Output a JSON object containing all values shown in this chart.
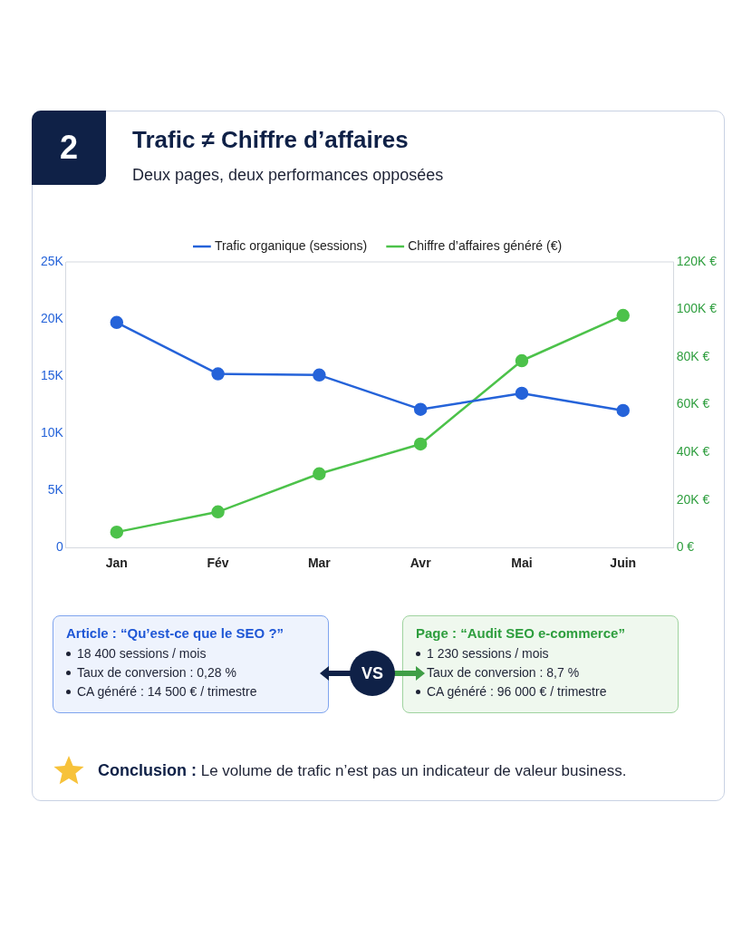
{
  "chart_data": {
    "type": "line",
    "title": "Trafic ≠ Chiffre d’affaires",
    "subtitle": "Deux pages, deux performances opposées",
    "categories": [
      "Jan",
      "Fév",
      "Mar",
      "Avr",
      "Mai",
      "Juin"
    ],
    "series": [
      {
        "name": "Trafic organique (sessions)",
        "color": "#2563d9",
        "values": [
          19700,
          15200,
          15100,
          12100,
          13500,
          12000
        ]
      },
      {
        "name": "Chiffre d’affaires généré (€)",
        "color": "#4cc24a",
        "axis": "y2",
        "values": [
          6500,
          15000,
          31000,
          43500,
          78500,
          97500
        ]
      }
    ],
    "ylim": [
      0,
      25000
    ],
    "yticks": [
      {
        "value": 0,
        "label": "0"
      },
      {
        "value": 5000,
        "label": "5K"
      },
      {
        "value": 10000,
        "label": "10K"
      },
      {
        "value": 15000,
        "label": "15K"
      },
      {
        "value": 20000,
        "label": "20K"
      },
      {
        "value": 25000,
        "label": "25K"
      }
    ],
    "y2lim": [
      0,
      120000
    ],
    "y2ticks": [
      {
        "value": 0,
        "label": "0 €"
      },
      {
        "value": 20000,
        "label": "20K €"
      },
      {
        "value": 40000,
        "label": "40K €"
      },
      {
        "value": 60000,
        "label": "60K €"
      },
      {
        "value": 80000,
        "label": "80K €"
      },
      {
        "value": 100000,
        "label": "100K €"
      },
      {
        "value": 120000,
        "label": "120K €"
      }
    ],
    "grid": false,
    "legend": "top",
    "marker": "circle",
    "line_style": "solid",
    "annotations": [
      "2",
      "Article : “Qu’est-ce que le SEO ?”",
      "18 400 sessions / mois",
      "Taux de conversion : 0,28 %",
      "CA généré : 14 500 € / trimestre",
      "VS",
      "Page : “Audit SEO e-commerce”",
      "1 230 sessions / mois",
      "Taux de conversion : 8,7 %",
      "CA généré : 96 000 € / trimestre",
      "Conclusion :",
      "Le volume de trafic n’est pas un indicateur de valeur business."
    ]
  }
}
